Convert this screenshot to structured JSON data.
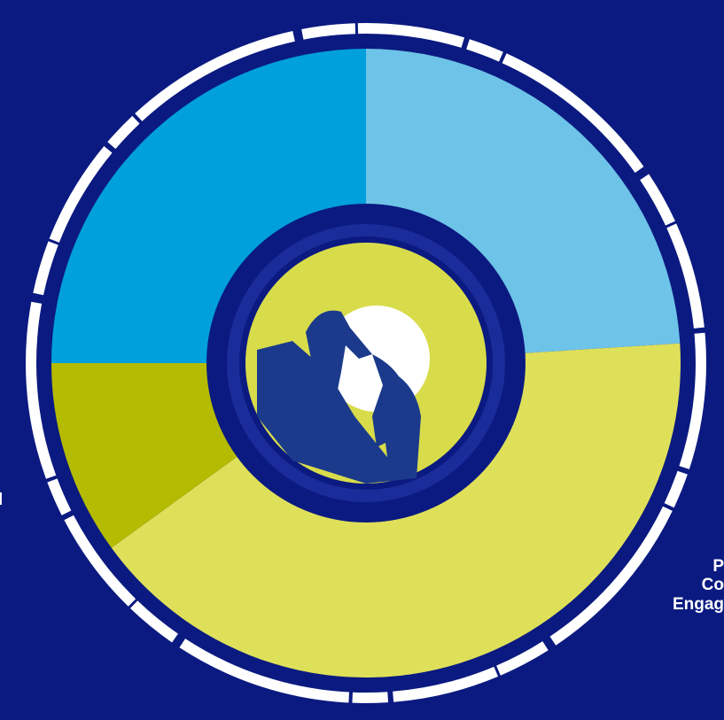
{
  "chart_data": {
    "type": "pie",
    "categories": [
      null,
      null,
      null,
      null
    ],
    "values": [
      24,
      41,
      10,
      25
    ],
    "colors": [
      "#6ec3e8",
      "#dfe05a",
      "#b4bb00",
      "#00a0dc"
    ],
    "annotations": [
      "P",
      "Co",
      "Engag",
      "l"
    ]
  }
}
